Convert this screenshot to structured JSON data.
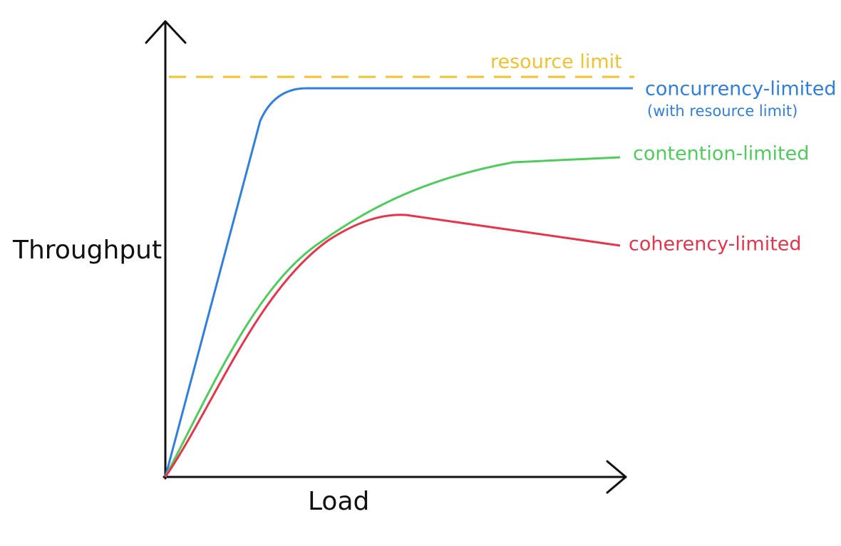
{
  "axes": {
    "y_label": "Throughput",
    "x_label": "Load"
  },
  "resource_limit": {
    "label": "resource limit"
  },
  "curves": [
    {
      "label": "concurrency-limited",
      "note": "(with resource limit)"
    },
    {
      "label": "contention-limited"
    },
    {
      "label": "coherency-limited"
    }
  ]
}
